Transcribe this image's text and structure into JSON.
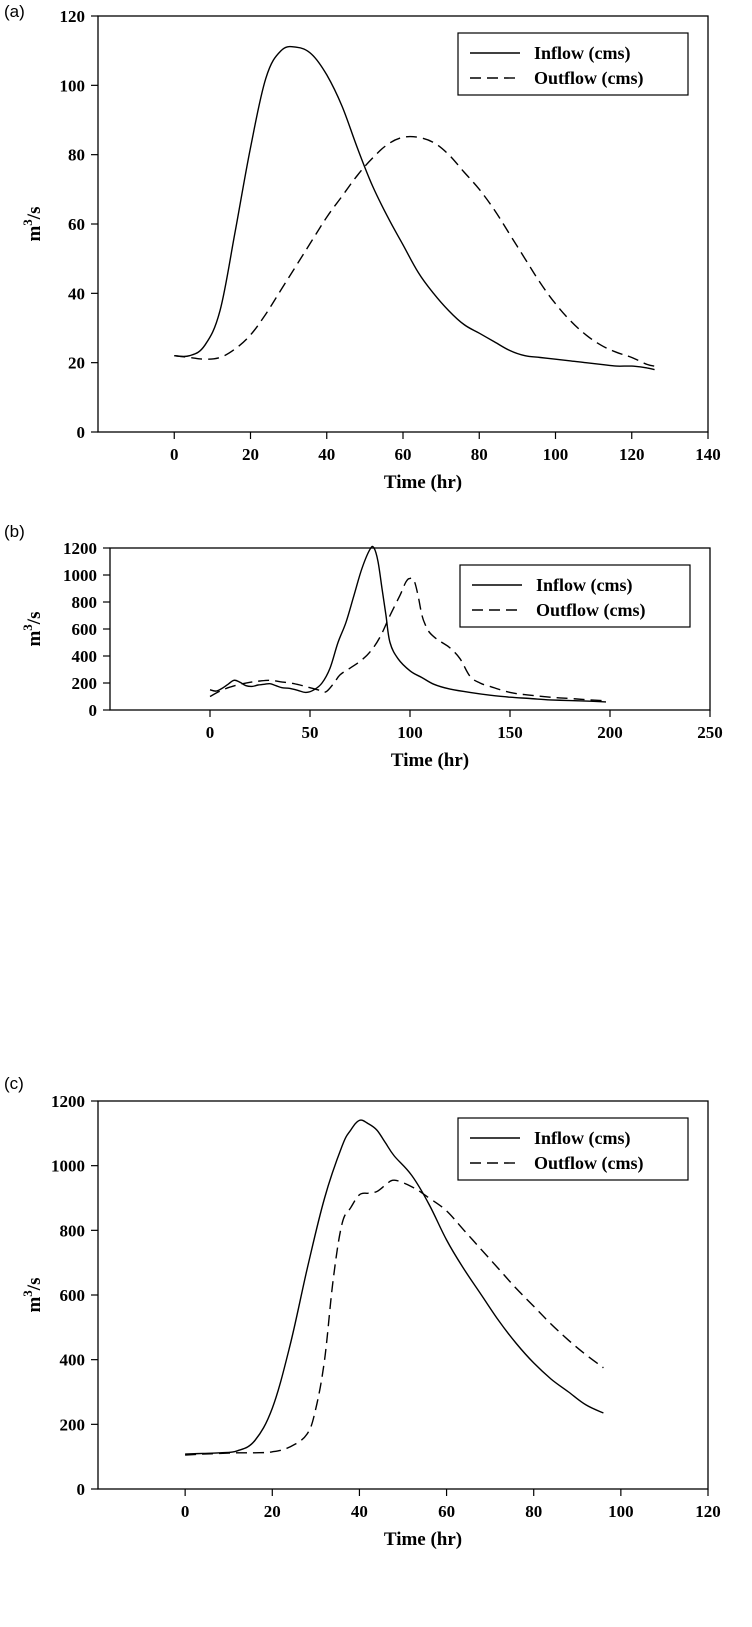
{
  "chart_data": [
    {
      "panel_label": "(a)",
      "type": "line",
      "xlabel": "Time (hr)",
      "ylabel": "m3/s",
      "ylabel_base": "m",
      "ylabel_sup": "3",
      "ylabel_rest": "/s",
      "xlim": [
        -20,
        140
      ],
      "ylim": [
        0,
        120
      ],
      "x_ticks": [
        0,
        20,
        40,
        60,
        80,
        100,
        120,
        140
      ],
      "y_ticks": [
        0,
        20,
        40,
        60,
        80,
        100,
        120
      ],
      "legend_position": "top-right",
      "series": [
        {
          "name": "Inflow (cms)",
          "style": "solid",
          "x": [
            0,
            4,
            8,
            12,
            16,
            20,
            24,
            28,
            32,
            36,
            40,
            44,
            48,
            52,
            56,
            60,
            64,
            68,
            72,
            76,
            80,
            84,
            88,
            92,
            96,
            100,
            104,
            108,
            112,
            116,
            120,
            124,
            126
          ],
          "y": [
            22,
            22,
            25,
            35,
            58,
            82,
            102,
            110,
            111,
            109,
            103,
            94,
            82,
            71,
            62,
            54,
            46,
            40,
            35,
            31,
            28.5,
            26,
            23.5,
            22,
            21.5,
            21,
            20.5,
            20,
            19.5,
            19,
            19,
            18.5,
            18
          ]
        },
        {
          "name": "Outflow (cms)",
          "style": "dashed",
          "x": [
            0,
            4,
            8,
            12,
            16,
            20,
            24,
            28,
            32,
            36,
            40,
            44,
            48,
            52,
            56,
            60,
            64,
            68,
            72,
            76,
            80,
            84,
            88,
            92,
            96,
            100,
            104,
            108,
            112,
            116,
            120,
            124,
            126
          ],
          "y": [
            22,
            21.5,
            21,
            21.5,
            24,
            28,
            34,
            41,
            48,
            55,
            62,
            68,
            74,
            79,
            83,
            85,
            85,
            83.5,
            80,
            75,
            70,
            64,
            57,
            50,
            43,
            37,
            32,
            28,
            25,
            23,
            21.5,
            19.5,
            19
          ]
        }
      ]
    },
    {
      "panel_label": "(b)",
      "type": "line",
      "xlabel": "Time (hr)",
      "ylabel": "m3/s",
      "ylabel_base": "m",
      "ylabel_sup": "3",
      "ylabel_rest": "/s",
      "xlim": [
        -50,
        250
      ],
      "ylim": [
        0,
        1200
      ],
      "x_ticks": [
        0,
        50,
        100,
        150,
        200,
        250
      ],
      "y_ticks": [
        0,
        200,
        400,
        600,
        800,
        1000,
        1200
      ],
      "legend_position": "top-right",
      "series": [
        {
          "name": "Inflow (cms)",
          "style": "solid",
          "x": [
            0,
            3,
            6,
            9,
            12,
            15,
            18,
            21,
            24,
            27,
            30,
            33,
            36,
            40,
            44,
            48,
            52,
            56,
            60,
            64,
            68,
            72,
            76,
            80,
            82,
            84,
            86,
            88,
            90,
            94,
            100,
            106,
            112,
            120,
            130,
            140,
            150,
            160,
            170,
            180,
            190,
            198
          ],
          "y": [
            150,
            140,
            160,
            190,
            220,
            205,
            180,
            175,
            185,
            190,
            195,
            180,
            165,
            160,
            145,
            130,
            150,
            200,
            310,
            500,
            650,
            850,
            1050,
            1190,
            1200,
            1100,
            900,
            700,
            500,
            380,
            290,
            240,
            190,
            155,
            130,
            110,
            95,
            85,
            75,
            70,
            65,
            60
          ]
        },
        {
          "name": "Outflow (cms)",
          "style": "dashed",
          "x": [
            0,
            5,
            10,
            15,
            20,
            25,
            30,
            35,
            40,
            45,
            50,
            55,
            58,
            62,
            65,
            70,
            75,
            80,
            85,
            90,
            95,
            98,
            100,
            102,
            104,
            106,
            108,
            110,
            113,
            116,
            120,
            125,
            130,
            135,
            140,
            150,
            160,
            170,
            180,
            190,
            198
          ],
          "y": [
            100,
            140,
            170,
            190,
            205,
            215,
            220,
            210,
            200,
            185,
            165,
            145,
            135,
            200,
            260,
            310,
            360,
            430,
            540,
            700,
            850,
            950,
            975,
            960,
            850,
            700,
            620,
            570,
            530,
            500,
            460,
            380,
            250,
            200,
            175,
            130,
            110,
            95,
            85,
            75,
            68
          ]
        }
      ]
    },
    {
      "panel_label": "(c)",
      "type": "line",
      "xlabel": "Time (hr)",
      "ylabel": "m3/s",
      "ylabel_base": "m",
      "ylabel_sup": "3",
      "ylabel_rest": "/s",
      "xlim": [
        -20,
        120
      ],
      "ylim": [
        0,
        1200
      ],
      "x_ticks": [
        0,
        20,
        40,
        60,
        80,
        100,
        120
      ],
      "y_ticks": [
        0,
        200,
        400,
        600,
        800,
        1000,
        1200
      ],
      "legend_position": "top-right",
      "series": [
        {
          "name": "Inflow (cms)",
          "style": "solid",
          "x": [
            0,
            4,
            8,
            12,
            16,
            20,
            24,
            28,
            32,
            36,
            38,
            40,
            42,
            44,
            46,
            48,
            52,
            56,
            60,
            64,
            68,
            72,
            76,
            80,
            84,
            88,
            92,
            96
          ],
          "y": [
            108,
            110,
            112,
            118,
            150,
            250,
            440,
            680,
            900,
            1060,
            1110,
            1140,
            1130,
            1110,
            1070,
            1030,
            970,
            880,
            770,
            680,
            600,
            520,
            450,
            390,
            340,
            300,
            260,
            235
          ]
        },
        {
          "name": "Outflow (cms)",
          "style": "dashed",
          "x": [
            0,
            4,
            8,
            12,
            16,
            20,
            24,
            28,
            30,
            32,
            34,
            36,
            38,
            40,
            42,
            44,
            46,
            48,
            52,
            56,
            60,
            64,
            68,
            72,
            76,
            80,
            84,
            88,
            92,
            96
          ],
          "y": [
            105,
            108,
            110,
            112,
            112,
            115,
            130,
            170,
            250,
            400,
            650,
            820,
            870,
            910,
            915,
            920,
            940,
            955,
            935,
            900,
            860,
            800,
            740,
            680,
            620,
            565,
            510,
            460,
            415,
            375
          ]
        }
      ]
    }
  ]
}
